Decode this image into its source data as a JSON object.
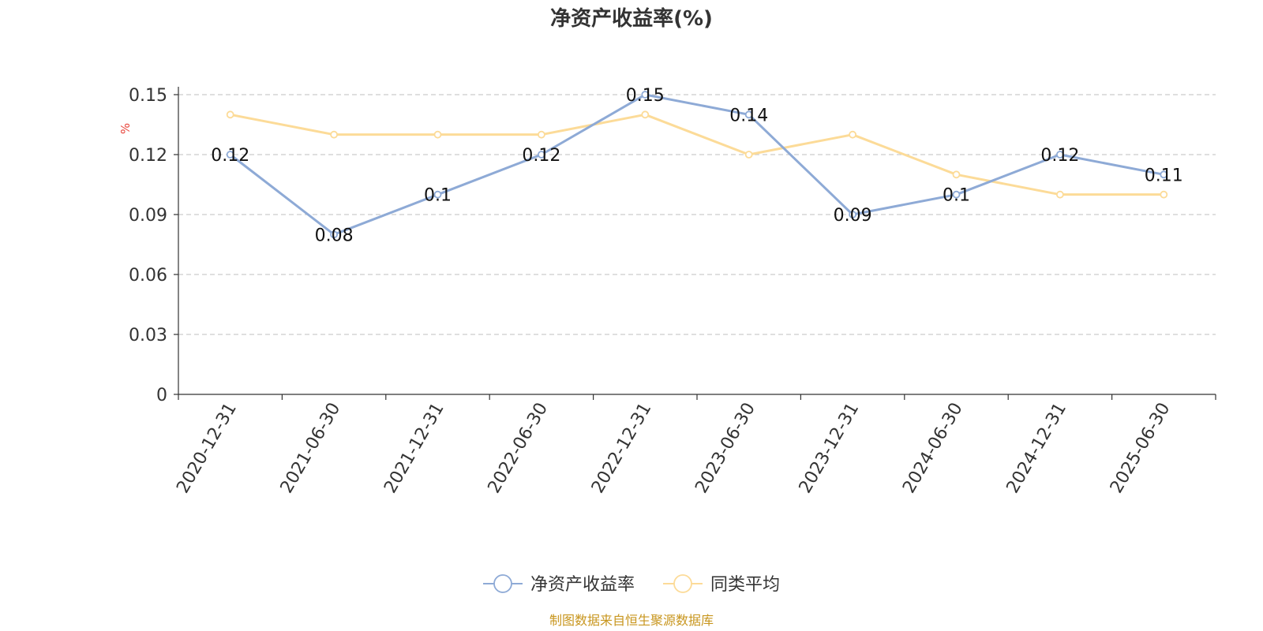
{
  "chart_data": {
    "type": "line",
    "title": "净资产收益率(%)",
    "ylabel": "%",
    "xlabel": "",
    "ylim": [
      0,
      0.15
    ],
    "yticks": [
      "0",
      "0.03",
      "0.06",
      "0.09",
      "0.12",
      "0.15"
    ],
    "categories": [
      "2020-12-31",
      "2021-06-30",
      "2021-12-31",
      "2022-06-30",
      "2022-12-31",
      "2023-06-30",
      "2023-12-31",
      "2024-06-30",
      "2024-12-31",
      "2025-06-30"
    ],
    "series": [
      {
        "name": "净资产收益率",
        "color": "#8eaad6",
        "values": [
          0.12,
          0.08,
          0.1,
          0.12,
          0.15,
          0.14,
          0.09,
          0.1,
          0.12,
          0.11
        ],
        "labels": [
          "0.12",
          "0.08",
          "0.1",
          "0.12",
          "0.15",
          "0.14",
          "0.09",
          "0.1",
          "0.12",
          "0.11"
        ]
      },
      {
        "name": "同类平均",
        "color": "#fcdb98",
        "values": [
          0.14,
          0.13,
          0.13,
          0.13,
          0.14,
          0.12,
          0.13,
          0.11,
          0.1,
          0.1
        ]
      }
    ],
    "grid": true,
    "legend_position": "bottom-center"
  },
  "source_note": "制图数据来自恒生聚源数据库",
  "colors": {
    "unit_label": "#e8443a",
    "source_note": "#c8961e",
    "grid": "#cccccc",
    "axis": "#333333"
  }
}
